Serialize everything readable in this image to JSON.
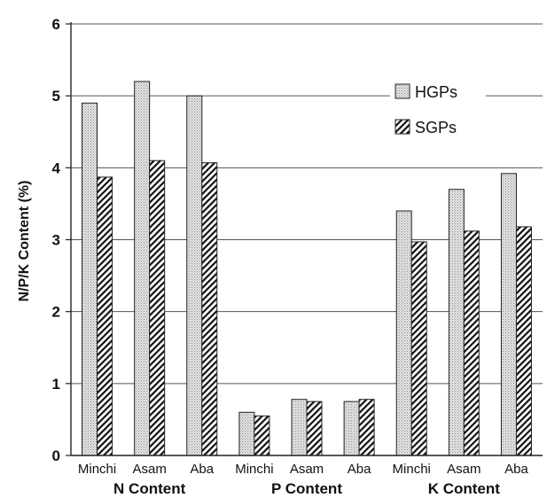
{
  "chart_data": {
    "type": "bar",
    "title": "",
    "xlabel": "",
    "ylabel": "N/P/K Content (%)",
    "ylim": [
      0,
      6
    ],
    "yticks": [
      0,
      1,
      2,
      3,
      4,
      5,
      6
    ],
    "grid": "horizontal",
    "legend_position": "top-right",
    "groups": [
      {
        "label": "N Content",
        "categories": [
          "Minchi",
          "Asam",
          "Aba"
        ]
      },
      {
        "label": "P Content",
        "categories": [
          "Minchi",
          "Asam",
          "Aba"
        ]
      },
      {
        "label": "K Content",
        "categories": [
          "Minchi",
          "Asam",
          "Aba"
        ]
      }
    ],
    "categories": [
      "Minchi",
      "Asam",
      "Aba",
      "Minchi",
      "Asam",
      "Aba",
      "Minchi",
      "Asam",
      "Aba"
    ],
    "series": [
      {
        "name": "HGPs",
        "pattern": "stipple",
        "values": [
          4.9,
          5.2,
          5.0,
          0.6,
          0.78,
          0.75,
          3.4,
          3.7,
          3.92
        ]
      },
      {
        "name": "SGPs",
        "pattern": "hatch",
        "values": [
          3.87,
          4.1,
          4.07,
          0.55,
          0.75,
          0.78,
          2.97,
          3.12,
          3.18
        ]
      }
    ]
  }
}
